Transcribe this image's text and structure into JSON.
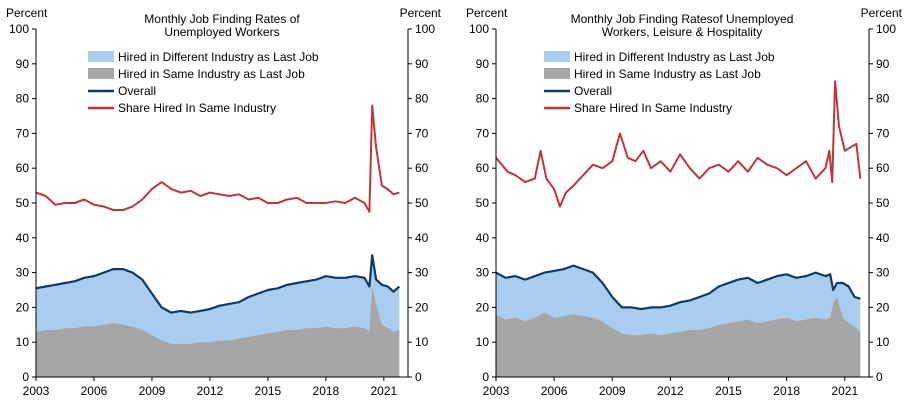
{
  "colors": {
    "different": "#a9cdee",
    "same": "#a6a6a6",
    "overall": "#0f3a63",
    "share": "#c0353a"
  },
  "chart_data": [
    {
      "type": "area",
      "title": "Monthly Job Finding Rates of\nUnemployed Workers",
      "ylabel_left": "Percent",
      "ylabel_right": "Percent",
      "ylim": [
        0,
        100
      ],
      "yticks": [
        0,
        10,
        20,
        30,
        40,
        50,
        60,
        70,
        80,
        90,
        100
      ],
      "xlim": [
        2003,
        2022.25
      ],
      "xticks": [
        2003,
        2006,
        2009,
        2012,
        2015,
        2018,
        2021
      ],
      "legend": [
        "Hired in Different Industry as Last Job",
        "Hired in Same Industry as Last Job",
        "Overall",
        "Share Hired In Same Industry"
      ],
      "series": [
        {
          "key": "overall",
          "kind": "line",
          "x": [
            2003.0,
            2003.5,
            2004.0,
            2004.5,
            2005.0,
            2005.5,
            2006.0,
            2006.5,
            2007.0,
            2007.5,
            2008.0,
            2008.5,
            2009.0,
            2009.5,
            2010.0,
            2010.5,
            2011.0,
            2011.5,
            2012.0,
            2012.5,
            2013.0,
            2013.5,
            2014.0,
            2014.5,
            2015.0,
            2015.5,
            2016.0,
            2016.5,
            2017.0,
            2017.5,
            2018.0,
            2018.5,
            2019.0,
            2019.5,
            2020.0,
            2020.25,
            2020.4,
            2020.6,
            2020.9,
            2021.2,
            2021.5,
            2021.8
          ],
          "y": [
            25.5,
            26,
            26.5,
            27,
            27.5,
            28.5,
            29,
            30,
            31,
            31,
            30,
            28,
            24,
            20,
            18.5,
            19,
            18.5,
            19,
            19.5,
            20.5,
            21,
            21.5,
            23,
            24,
            25,
            25.5,
            26.5,
            27,
            27.5,
            28,
            29,
            28.5,
            28.5,
            29,
            28.5,
            26,
            35,
            28,
            26.5,
            26,
            24.5,
            26
          ]
        },
        {
          "key": "same",
          "kind": "area",
          "x": [
            2003.0,
            2003.5,
            2004.0,
            2004.5,
            2005.0,
            2005.5,
            2006.0,
            2006.5,
            2007.0,
            2007.5,
            2008.0,
            2008.5,
            2009.0,
            2009.5,
            2010.0,
            2010.5,
            2011.0,
            2011.5,
            2012.0,
            2012.5,
            2013.0,
            2013.5,
            2014.0,
            2014.5,
            2015.0,
            2015.5,
            2016.0,
            2016.5,
            2017.0,
            2017.5,
            2018.0,
            2018.5,
            2019.0,
            2019.5,
            2020.0,
            2020.25,
            2020.4,
            2020.6,
            2020.9,
            2021.2,
            2021.5,
            2021.8
          ],
          "y": [
            13,
            13.5,
            13.5,
            14,
            14,
            14.5,
            14.5,
            15,
            15.5,
            15,
            14.5,
            13.5,
            12,
            10.5,
            9.5,
            9.5,
            9.5,
            10,
            10,
            10.5,
            10.5,
            11,
            11.5,
            12,
            12.5,
            13,
            13.5,
            13.5,
            14,
            14,
            14.5,
            14,
            14,
            14.5,
            14,
            13,
            26,
            21,
            15,
            14,
            13,
            13.5
          ]
        },
        {
          "key": "share",
          "kind": "line",
          "x": [
            2003.0,
            2003.5,
            2004.0,
            2004.5,
            2005.0,
            2005.5,
            2006.0,
            2006.5,
            2007.0,
            2007.5,
            2008.0,
            2008.5,
            2009.0,
            2009.5,
            2010.0,
            2010.5,
            2011.0,
            2011.5,
            2012.0,
            2012.5,
            2013.0,
            2013.5,
            2014.0,
            2014.5,
            2015.0,
            2015.5,
            2016.0,
            2016.5,
            2017.0,
            2017.5,
            2018.0,
            2018.5,
            2019.0,
            2019.5,
            2020.0,
            2020.25,
            2020.4,
            2020.6,
            2020.9,
            2021.2,
            2021.5,
            2021.8
          ],
          "y": [
            53,
            52,
            49.5,
            50,
            50,
            51,
            49.5,
            49,
            48,
            48,
            49,
            51,
            54,
            56,
            54,
            53,
            53.5,
            52,
            53,
            52.5,
            52,
            52.5,
            51,
            51.5,
            50,
            50,
            51,
            51.5,
            50,
            50,
            50,
            50.5,
            50,
            51.5,
            50,
            47.5,
            78,
            66,
            55,
            54,
            52.5,
            53
          ]
        }
      ]
    },
    {
      "type": "area",
      "title": "Monthly Job Finding Ratesof Unemployed\nWorkers, Leisure & Hospitality",
      "ylabel_left": "Percent",
      "ylabel_right": "Percent",
      "ylim": [
        0,
        100
      ],
      "yticks": [
        0,
        10,
        20,
        30,
        40,
        50,
        60,
        70,
        80,
        90,
        100
      ],
      "xlim": [
        2003,
        2022.25
      ],
      "xticks": [
        2003,
        2006,
        2009,
        2012,
        2015,
        2018,
        2021
      ],
      "legend": [
        "Hired in Different Industry as Last Job",
        "Hired in Same Industry as Last Job",
        "Overall",
        "Share Hired In Same Industry"
      ],
      "series": [
        {
          "key": "overall",
          "kind": "line",
          "x": [
            2003.0,
            2003.5,
            2004.0,
            2004.5,
            2005.0,
            2005.5,
            2006.0,
            2006.5,
            2007.0,
            2007.5,
            2008.0,
            2008.5,
            2009.0,
            2009.5,
            2010.0,
            2010.5,
            2011.0,
            2011.5,
            2012.0,
            2012.5,
            2013.0,
            2013.5,
            2014.0,
            2014.5,
            2015.0,
            2015.5,
            2016.0,
            2016.5,
            2017.0,
            2017.5,
            2018.0,
            2018.5,
            2019.0,
            2019.5,
            2020.0,
            2020.25,
            2020.4,
            2020.6,
            2020.9,
            2021.2,
            2021.5,
            2021.8
          ],
          "y": [
            30,
            28.5,
            29,
            28,
            29,
            30,
            30.5,
            31,
            32,
            31,
            30,
            27,
            23,
            20,
            20,
            19.5,
            20,
            20,
            20.5,
            21.5,
            22,
            23,
            24,
            26,
            27,
            28,
            28.5,
            27,
            28,
            29,
            29.5,
            28.5,
            29,
            30,
            29,
            29.5,
            25,
            27,
            27,
            26,
            23,
            22.5
          ]
        },
        {
          "key": "same",
          "kind": "area",
          "x": [
            2003.0,
            2003.5,
            2004.0,
            2004.5,
            2005.0,
            2005.5,
            2006.0,
            2006.5,
            2007.0,
            2007.5,
            2008.0,
            2008.5,
            2009.0,
            2009.5,
            2010.0,
            2010.5,
            2011.0,
            2011.5,
            2012.0,
            2012.5,
            2013.0,
            2013.5,
            2014.0,
            2014.5,
            2015.0,
            2015.5,
            2016.0,
            2016.5,
            2017.0,
            2017.5,
            2018.0,
            2018.5,
            2019.0,
            2019.5,
            2020.0,
            2020.25,
            2020.4,
            2020.6,
            2020.9,
            2021.2,
            2021.5,
            2021.8
          ],
          "y": [
            18,
            16.5,
            17,
            16,
            17,
            18.5,
            17,
            17.5,
            18,
            17.5,
            17,
            16,
            14,
            12.5,
            12,
            12,
            12.5,
            12,
            12.5,
            13,
            13.5,
            13.5,
            14,
            15,
            15.5,
            16,
            16.5,
            15.5,
            16,
            16.5,
            17,
            16,
            16.5,
            17,
            16.5,
            17,
            21,
            23,
            17,
            15.5,
            14.5,
            13
          ]
        },
        {
          "key": "share",
          "kind": "line",
          "x": [
            2003.0,
            2003.3,
            2003.6,
            2004.0,
            2004.5,
            2005.0,
            2005.3,
            2005.6,
            2006.0,
            2006.3,
            2006.6,
            2007.0,
            2007.5,
            2008.0,
            2008.5,
            2009.0,
            2009.4,
            2009.8,
            2010.2,
            2010.6,
            2011.0,
            2011.5,
            2012.0,
            2012.5,
            2013.0,
            2013.5,
            2014.0,
            2014.5,
            2015.0,
            2015.5,
            2016.0,
            2016.5,
            2017.0,
            2017.5,
            2018.0,
            2018.5,
            2019.0,
            2019.5,
            2020.0,
            2020.2,
            2020.35,
            2020.5,
            2020.7,
            2021.0,
            2021.3,
            2021.6,
            2021.8
          ],
          "y": [
            63,
            61,
            59,
            58,
            56,
            57,
            65,
            57,
            54,
            49,
            53,
            55,
            58,
            61,
            60,
            62,
            70,
            63,
            62,
            65,
            60,
            62,
            59,
            64,
            60,
            57,
            60,
            61,
            59,
            62,
            59,
            63,
            61,
            60,
            58,
            60,
            62,
            57,
            60,
            65,
            56,
            85,
            72,
            65,
            66,
            67,
            57
          ]
        }
      ]
    }
  ]
}
